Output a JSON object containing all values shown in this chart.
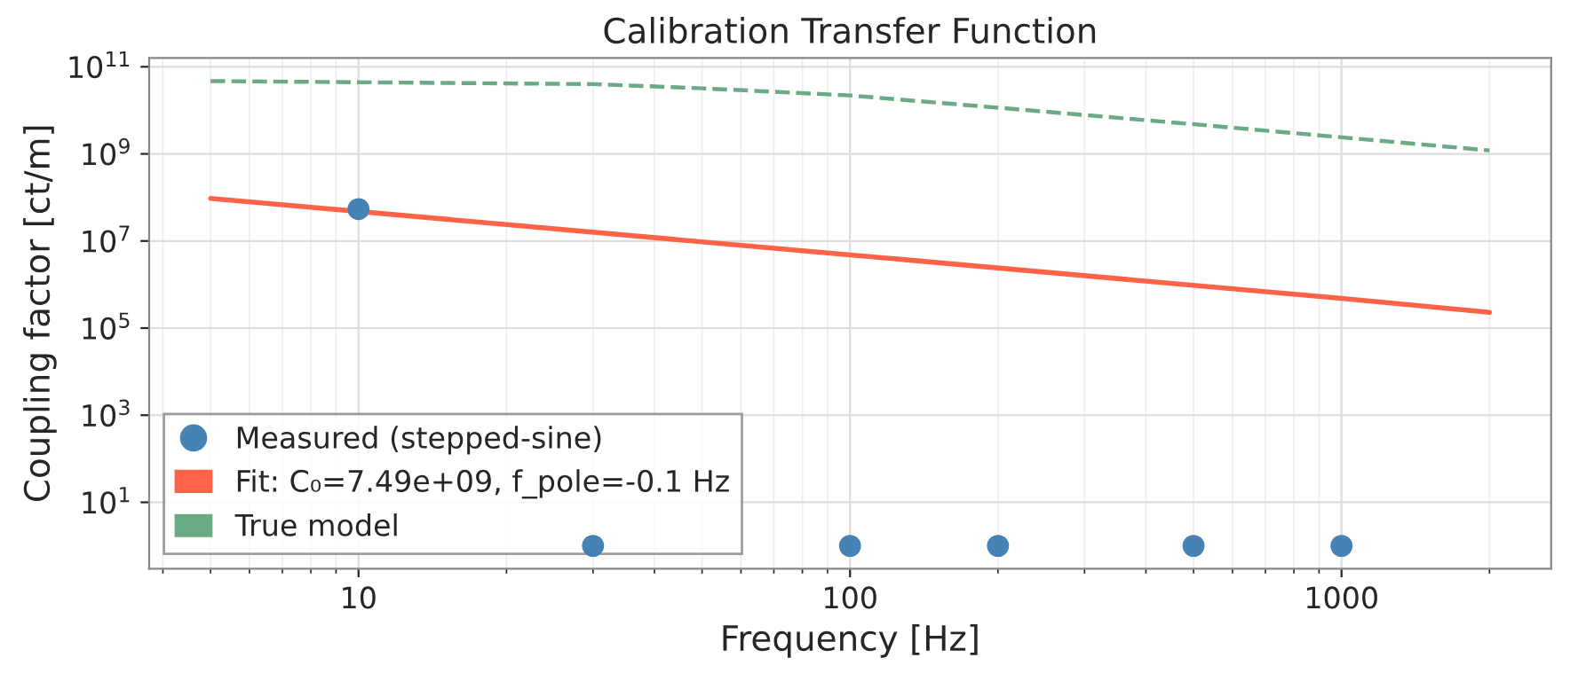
{
  "chart_data": {
    "type": "scatter",
    "title": "Calibration Transfer Function",
    "xlabel": "Frequency [Hz]",
    "ylabel": "Coupling factor [ct/m]",
    "log": "xy",
    "grid": true,
    "legend": "bottom left",
    "xlim": [
      3.75,
      2670
    ],
    "xticks": [
      10,
      100,
      1000
    ],
    "ylim": [
      0.3,
      160000000000.0
    ],
    "yticks": [
      {
        "value": 10,
        "label": "10$^{1}$"
      },
      {
        "value": 1000,
        "label": "10$^{3}$"
      },
      {
        "value": 100000,
        "label": "10$^{5}$"
      },
      {
        "value": 10000000,
        "label": "10$^{7}$"
      },
      {
        "value": 1000000000,
        "label": "10$^{9}$"
      },
      {
        "value": 100000000000,
        "label": "10$^{11}$"
      }
    ],
    "series": [
      {
        "name": "Measured (stepped-sine)",
        "marker": "circle",
        "color": "#4682b4",
        "x": [
          10,
          30,
          100,
          200,
          500,
          1000
        ],
        "values": [
          54000000.0,
          1,
          1,
          1,
          1,
          1
        ]
      },
      {
        "name": "Fit: C₀=7.49e+09, f_pole=-0.1 Hz",
        "type": "line",
        "line_style": "solid",
        "color": "#ff6347",
        "x": [
          5,
          100,
          1000,
          2000
        ],
        "values": [
          95000000.0,
          4800000.0,
          480000.0,
          230000.0
        ]
      },
      {
        "name": "True model",
        "type": "line",
        "line_style": "dashed",
        "color": "#6aaa84",
        "x": [
          5,
          30,
          50,
          100,
          200,
          500,
          1000,
          2000
        ],
        "values": [
          47000000000.0,
          40000000000.0,
          32000000000.0,
          22000000000.0,
          11500000000.0,
          4800000000.0,
          2400000000.0,
          1200000000.0
        ]
      }
    ]
  }
}
